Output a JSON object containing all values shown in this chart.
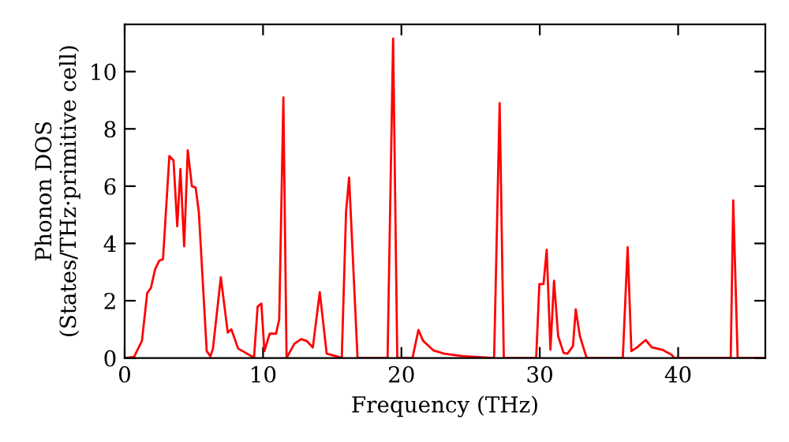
{
  "chart_data": {
    "type": "line",
    "xlabel": "Frequency (THz)",
    "ylabel": "Phonon DOS\n(States/THz·primitive cell)",
    "xlim": [
      0,
      46.3
    ],
    "ylim": [
      0,
      11.65
    ],
    "xticks": [
      0,
      10,
      20,
      30,
      40
    ],
    "yticks": [
      0,
      2,
      4,
      6,
      8,
      10
    ],
    "grid": false,
    "legend": false,
    "marker": "none",
    "line_style": "solid",
    "series": [
      {
        "color": "#ff0000",
        "x": [
          0,
          0.68,
          1.25,
          1.63,
          1.9,
          2.2,
          2.5,
          2.77,
          3.23,
          3.53,
          3.8,
          4.03,
          4.3,
          4.56,
          4.86,
          5.13,
          5.36,
          5.93,
          6.2,
          6.38,
          6.95,
          7.45,
          7.71,
          8.2,
          8.85,
          9.35,
          9.61,
          9.88,
          10.1,
          10.48,
          10.94,
          11.17,
          11.47,
          11.7,
          12.27,
          12.76,
          13.14,
          13.6,
          14.1,
          14.6,
          15.3,
          15.69,
          16.0,
          16.22,
          16.83,
          19.0,
          19.4,
          19.7,
          20.8,
          21.23,
          21.57,
          22.3,
          23.1,
          24.4,
          26.7,
          27.1,
          27.4,
          29.74,
          29.97,
          30.27,
          30.5,
          30.77,
          31.03,
          31.33,
          31.72,
          32.0,
          32.4,
          32.6,
          32.9,
          33.39,
          36.0,
          36.35,
          36.62,
          37.03,
          37.65,
          38.1,
          38.85,
          39.54,
          39.7,
          43.8,
          43.98,
          44.3,
          46.3
        ],
        "values": [
          0,
          0.04,
          0.6,
          2.27,
          2.45,
          3.1,
          3.4,
          3.45,
          7.05,
          6.9,
          4.6,
          6.6,
          3.9,
          7.25,
          6.0,
          5.95,
          5.1,
          0.24,
          0.06,
          0.33,
          2.82,
          0.89,
          1.0,
          0.33,
          0.15,
          0.02,
          1.8,
          1.9,
          0.24,
          0.85,
          0.85,
          1.35,
          9.1,
          0,
          0.5,
          0.66,
          0.6,
          0.37,
          2.3,
          0.15,
          0.06,
          0,
          5.1,
          6.3,
          0,
          0,
          11.15,
          0,
          0,
          0.98,
          0.6,
          0.27,
          0.15,
          0.07,
          0,
          8.9,
          0,
          0,
          2.58,
          2.58,
          3.78,
          0.29,
          2.7,
          0.76,
          0.18,
          0.15,
          0.42,
          1.7,
          0.76,
          0,
          0,
          3.87,
          0.24,
          0.37,
          0.63,
          0.37,
          0.29,
          0.11,
          0,
          0,
          5.5,
          0,
          0
        ]
      }
    ]
  }
}
